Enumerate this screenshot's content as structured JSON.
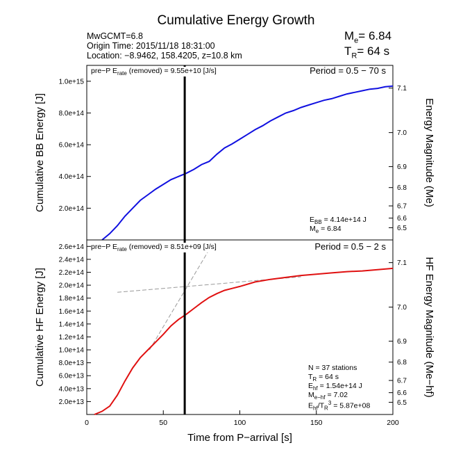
{
  "header": {
    "title": "Cumulative Energy Growth",
    "info_line1": "MwGCMT=6.8",
    "info_line2": "Origin Time: 2015/11/18 18:31:00",
    "info_line3": "Location: −8.9462, 158.4205, z=10.8 km",
    "me_label": "M",
    "me_sub": "e",
    "me_value": "= 6.84",
    "tr_label": "T",
    "tr_sub": "R",
    "tr_value": "= 64 s"
  },
  "colors": {
    "bb_line": "#1010e0",
    "hf_line": "#e01010",
    "marker": "#000000",
    "dashed": "#999999"
  },
  "chart_data": [
    {
      "type": "line",
      "panel": "top",
      "title": "",
      "xlabel": "Time from P−arrival [s]",
      "ylabel": "Cumulative BB Energy [J]",
      "ylabel_right": "Energy Magnitude (Me)",
      "xlim": [
        0,
        200
      ],
      "ylim": [
        0,
        1100000000000000.0
      ],
      "grid": false,
      "x_ticks": [
        "0",
        "50",
        "100",
        "150",
        "200"
      ],
      "y_ticks": [
        200000000000000.0,
        400000000000000.0,
        600000000000000.0,
        800000000000000.0,
        1000000000000000.0
      ],
      "y_tick_labels": [
        "2.0e+14",
        "4.0e+14",
        "6.0e+14",
        "8.0e+14",
        "1.0e+15"
      ],
      "right_ticks": [
        "6.5",
        "6.6",
        "6.7",
        "6.8",
        "6.9",
        "7.0",
        "7.1"
      ],
      "series": [
        {
          "x": [
            10,
            15,
            20,
            25,
            30,
            35,
            40,
            45,
            50,
            55,
            60,
            65,
            70,
            75,
            80,
            85,
            90,
            95,
            100,
            105,
            110,
            115,
            120,
            125,
            130,
            135,
            140,
            145,
            150,
            155,
            160,
            165,
            170,
            175,
            180,
            185,
            190,
            195,
            200
          ],
          "y": [
            0.0,
            40000000000000.0,
            90000000000000.0,
            150000000000000.0,
            200000000000000.0,
            250000000000000.0,
            285000000000000.0,
            320000000000000.0,
            350000000000000.0,
            380000000000000.0,
            400000000000000.0,
            420000000000000.0,
            445000000000000.0,
            475000000000000.0,
            495000000000000.0,
            540000000000000.0,
            580000000000000.0,
            605000000000000.0,
            635000000000000.0,
            665000000000000.0,
            695000000000000.0,
            720000000000000.0,
            750000000000000.0,
            775000000000000.0,
            800000000000000.0,
            815000000000000.0,
            835000000000000.0,
            850000000000000.0,
            865000000000000.0,
            880000000000000.0,
            890000000000000.0,
            905000000000000.0,
            920000000000000.0,
            930000000000000.0,
            940000000000000.0,
            950000000000000.0,
            955000000000000.0,
            965000000000000.0,
            970000000000000.0
          ]
        }
      ],
      "annotations": {
        "prep_prefix": "pre−P E",
        "prep_sub": "rate",
        "prep_suffix": "(removed) = 9.55e+10 [J/s]",
        "period": "Period = 0.5 − 70 s",
        "ebb_label": "E",
        "ebb_sub": "BB",
        "ebb_value": "= 4.14e+14 J",
        "me_label": "M",
        "me_sub": "e",
        "me_value": "= 6.84"
      }
    },
    {
      "type": "line",
      "panel": "bottom",
      "title": "",
      "xlabel": "Time from P−arrival [s]",
      "ylabel": "Cumulative HF Energy [J]",
      "ylabel_right": "HF Energy Magnitude (Me−hf)",
      "xlim": [
        0,
        200
      ],
      "ylim": [
        0,
        270000000000000.0
      ],
      "grid": false,
      "x_ticks": [
        "0",
        "50",
        "100",
        "150",
        "200"
      ],
      "y_ticks": [
        20000000000000.0,
        40000000000000.0,
        60000000000000.0,
        80000000000000.0,
        100000000000000.0,
        120000000000000.0,
        140000000000000.0,
        160000000000000.0,
        180000000000000.0,
        200000000000000.0,
        220000000000000.0,
        240000000000000.0,
        260000000000000.0
      ],
      "y_tick_labels": [
        "2.0e+13",
        "4.0e+13",
        "6.0e+13",
        "8.0e+13",
        "1.0e+14",
        "1.2e+14",
        "1.4e+14",
        "1.6e+14",
        "1.8e+14",
        "2.0e+14",
        "2.2e+14",
        "2.4e+14",
        "2.6e+14"
      ],
      "right_ticks": [
        "6.5",
        "6.6",
        "6.7",
        "6.8",
        "6.9",
        "7.0",
        "7.1"
      ],
      "series": [
        {
          "x": [
            5,
            10,
            15,
            20,
            25,
            30,
            35,
            40,
            45,
            50,
            55,
            60,
            65,
            70,
            75,
            80,
            85,
            90,
            95,
            100,
            110,
            120,
            130,
            140,
            150,
            160,
            170,
            180,
            190,
            200
          ],
          "y": [
            0.0,
            5000000000000.0,
            13000000000000.0,
            30000000000000.0,
            52000000000000.0,
            72000000000000.0,
            88000000000000.0,
            100000000000000.0,
            112000000000000.0,
            124000000000000.0,
            137000000000000.0,
            147000000000000.0,
            155000000000000.0,
            164000000000000.0,
            173000000000000.0,
            181000000000000.0,
            187000000000000.0,
            192000000000000.0,
            195000000000000.0,
            198000000000000.0,
            205000000000000.0,
            209000000000000.0,
            212000000000000.0,
            215000000000000.0,
            217000000000000.0,
            219000000000000.0,
            221000000000000.0,
            222000000000000.0,
            224000000000000.0,
            226000000000000.0
          ]
        }
      ],
      "dashed_lines": [
        {
          "x": [
            41,
            80
          ],
          "y": [
            100000000000000.0,
            255000000000000.0
          ]
        },
        {
          "x": [
            20,
            140
          ],
          "y": [
            189000000000000.0,
            213000000000000.0
          ]
        }
      ],
      "annotations": {
        "prep_prefix": "pre−P E",
        "prep_sub": "rate",
        "prep_suffix": "(removed) = 8.51e+09 [J/s]",
        "period": "Period = 0.5 − 2 s",
        "n_line": "N = 37 stations",
        "tr_label": "T",
        "tr_sub": "R",
        "tr_value": "= 64  s",
        "ehf_label": "E",
        "ehf_sub": "hf",
        "ehf_value": "= 1.54e+14 J",
        "mehf_label": "M",
        "mehf_sub": "e−hf",
        "mehf_value": "= 7.02",
        "ratio_label": "E",
        "ratio_sub": "hf",
        "ratio_mid": "/T",
        "ratio_sub2": "R",
        "ratio_sup": "3",
        "ratio_value": "=  5.87e+08"
      }
    }
  ],
  "marker_x": 64
}
